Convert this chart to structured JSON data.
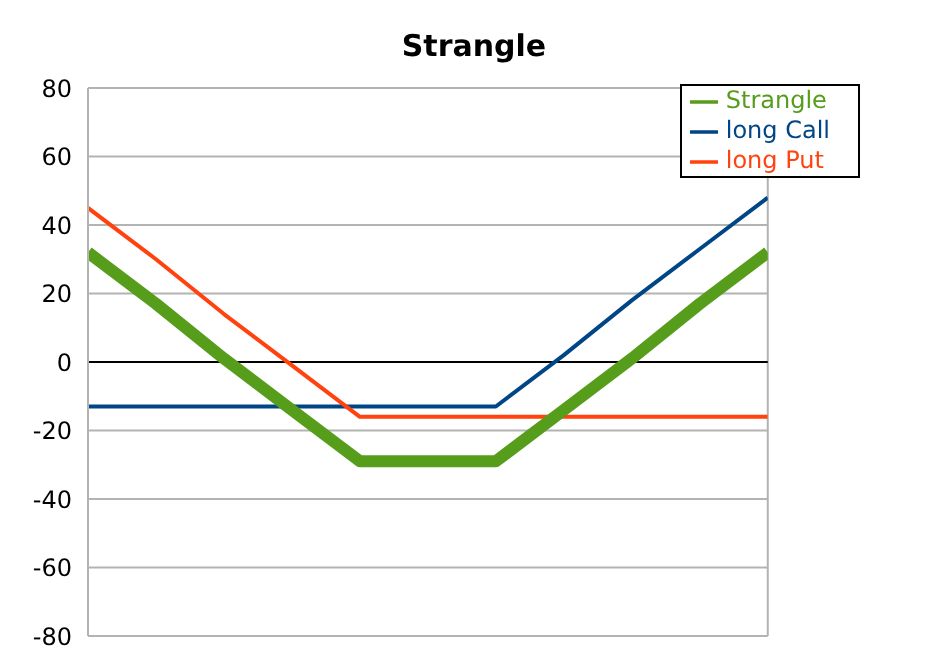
{
  "chart_data": {
    "type": "line",
    "title": "Strangle",
    "categories": [
      null,
      null,
      null,
      null,
      null,
      null,
      null,
      null,
      null,
      null,
      null
    ],
    "series": [
      {
        "name": "long Call",
        "color": "#004586",
        "values": [
          -13,
          -13,
          -13,
          -13,
          -13,
          -13,
          -13,
          2,
          18,
          33,
          48
        ]
      },
      {
        "name": "long Put",
        "color": "#ff420e",
        "values": [
          45,
          30,
          14,
          -1,
          -16,
          -16,
          -16,
          -16,
          -16,
          -16,
          -16
        ]
      },
      {
        "name": "Strangle",
        "color": "#579d1c",
        "values": [
          32,
          17,
          1,
          -14,
          -29,
          -29,
          -29,
          -14,
          1,
          17,
          32
        ]
      }
    ],
    "ylim": [
      -80,
      80
    ],
    "yticks": [
      -80,
      -60,
      -40,
      -20,
      0,
      20,
      40,
      60,
      80
    ],
    "tick_labels": "y",
    "grid": "y",
    "legend": "top right",
    "marker": "none",
    "line_style": "solid",
    "ref_lines": [
      {
        "axis": "y",
        "value": 0,
        "color": "#000000"
      }
    ]
  }
}
